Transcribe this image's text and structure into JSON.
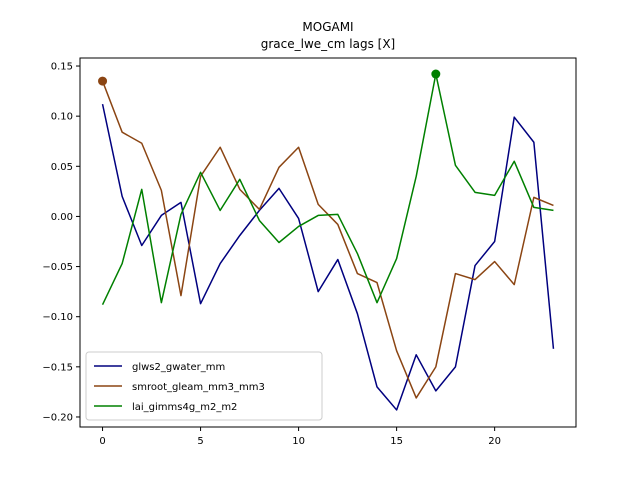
{
  "chart_data": {
    "type": "line",
    "title": "MOGAMI",
    "subtitle": "grace_lwe_cm lags [X]",
    "xlabel": "",
    "ylabel": "",
    "xlim": [
      -1.15,
      24.15
    ],
    "ylim": [
      -0.21,
      0.158
    ],
    "xticks": [
      0,
      5,
      10,
      15,
      20
    ],
    "yticks": [
      -0.2,
      -0.15,
      -0.1,
      -0.05,
      0.0,
      0.05,
      0.1,
      0.15
    ],
    "ytick_labels": [
      "−0.20",
      "−0.15",
      "−0.10",
      "−0.05",
      "0.00",
      "0.05",
      "0.10",
      "0.15"
    ],
    "grid": false,
    "legend_position": "lower-left",
    "x": [
      0,
      1,
      2,
      3,
      4,
      5,
      6,
      7,
      8,
      9,
      10,
      11,
      12,
      13,
      14,
      15,
      16,
      17,
      18,
      19,
      20,
      21,
      22,
      23
    ],
    "series": [
      {
        "name": "glws2_gwater_mm",
        "color": "#00007f",
        "values": [
          0.112,
          0.02,
          -0.029,
          0.001,
          0.014,
          -0.087,
          -0.047,
          -0.019,
          0.006,
          0.028,
          -0.002,
          -0.075,
          -0.043,
          -0.097,
          -0.17,
          -0.193,
          -0.138,
          -0.174,
          -0.15,
          -0.049,
          -0.025,
          0.099,
          0.074,
          -0.132
        ]
      },
      {
        "name": "smroot_gleam_mm3_mm3",
        "color": "#8b4513",
        "values": [
          0.135,
          0.084,
          0.073,
          0.026,
          -0.079,
          0.04,
          0.069,
          0.027,
          0.007,
          0.049,
          0.069,
          0.012,
          -0.008,
          -0.057,
          -0.066,
          -0.134,
          -0.181,
          -0.15,
          -0.057,
          -0.063,
          -0.045,
          -0.068,
          0.019,
          0.011
        ]
      },
      {
        "name": "lai_gimms4g_m2_m2",
        "color": "#008000",
        "values": [
          -0.088,
          -0.047,
          0.027,
          -0.086,
          0.002,
          0.044,
          0.006,
          0.037,
          -0.004,
          -0.026,
          -0.01,
          0.001,
          0.002,
          -0.037,
          -0.086,
          -0.042,
          0.04,
          0.142,
          0.051,
          0.024,
          0.021,
          0.055,
          0.009,
          0.006
        ]
      }
    ],
    "markers": [
      {
        "series": "smroot_gleam_mm3_mm3",
        "x": 0,
        "y": 0.135
      },
      {
        "series": "lai_gimms4g_m2_m2",
        "x": 17,
        "y": 0.142
      }
    ]
  }
}
